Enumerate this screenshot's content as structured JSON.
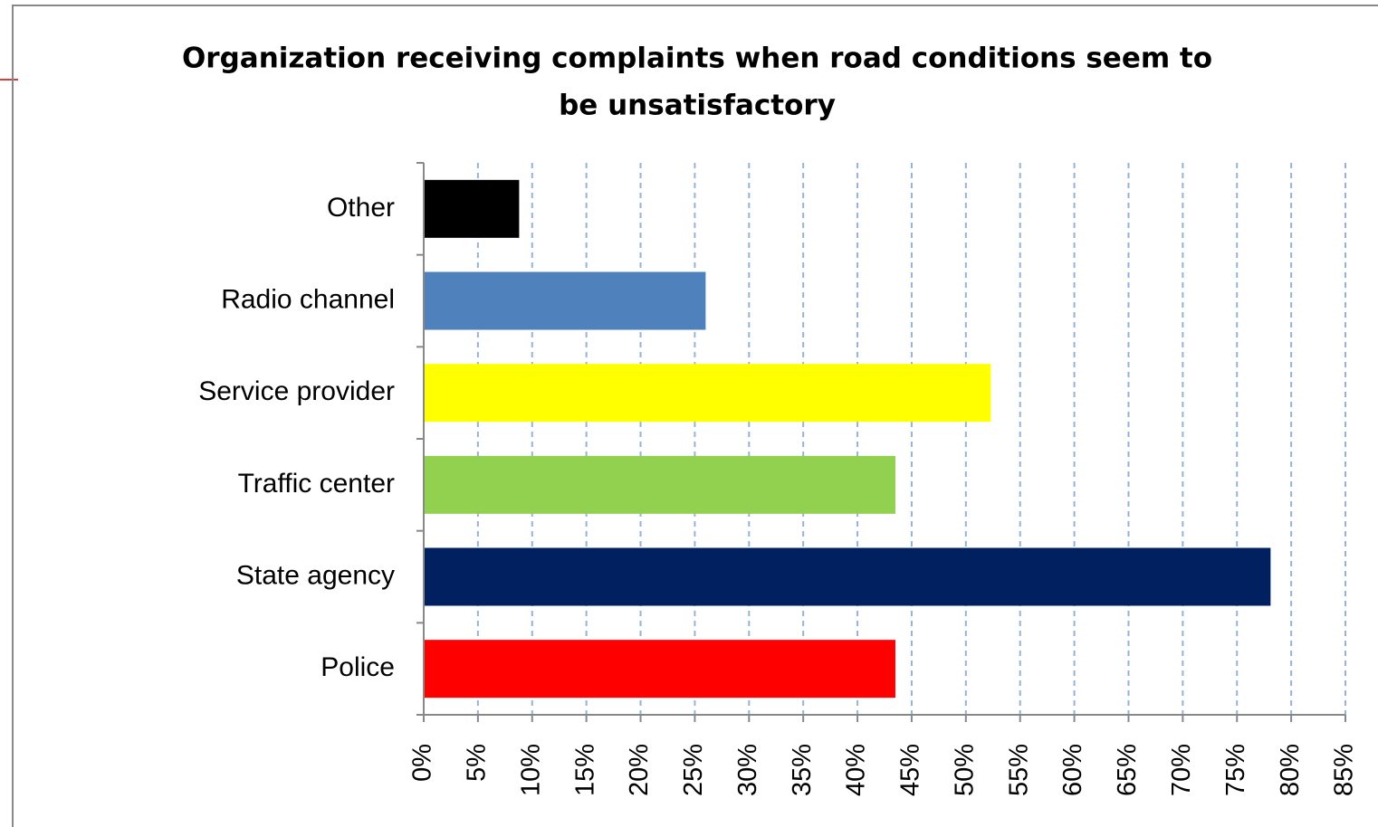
{
  "chart_data": {
    "type": "hbar",
    "title": [
      "Organization receiving complaints when road conditions seem to",
      "be unsatisfactory"
    ],
    "categories": [
      "Other",
      "Radio channel",
      "Service provider",
      "Traffic center",
      "State agency",
      "Police"
    ],
    "values": [
      8.8,
      26.0,
      52.3,
      43.5,
      78.1,
      43.5
    ],
    "colors": [
      "#000000",
      "#4f81bd",
      "#ffff00",
      "#92d050",
      "#002060",
      "#ff0000"
    ],
    "xlim": [
      0,
      85
    ],
    "xticks": [
      {
        "value": 0,
        "label": "0%"
      },
      {
        "value": 5,
        "label": "5%"
      },
      {
        "value": 10,
        "label": "10%"
      },
      {
        "value": 15,
        "label": "15%"
      },
      {
        "value": 20,
        "label": "20%"
      },
      {
        "value": 25,
        "label": "25%"
      },
      {
        "value": 30,
        "label": "30%"
      },
      {
        "value": 35,
        "label": "35%"
      },
      {
        "value": 40,
        "label": "40%"
      },
      {
        "value": 45,
        "label": "45%"
      },
      {
        "value": 50,
        "label": "50%"
      },
      {
        "value": 55,
        "label": "55%"
      },
      {
        "value": 60,
        "label": "60%"
      },
      {
        "value": 65,
        "label": "65%"
      },
      {
        "value": 70,
        "label": "70%"
      },
      {
        "value": 75,
        "label": "75%"
      },
      {
        "value": 80,
        "label": "80%"
      },
      {
        "value": 85,
        "label": "85%"
      }
    ],
    "grid": true
  }
}
